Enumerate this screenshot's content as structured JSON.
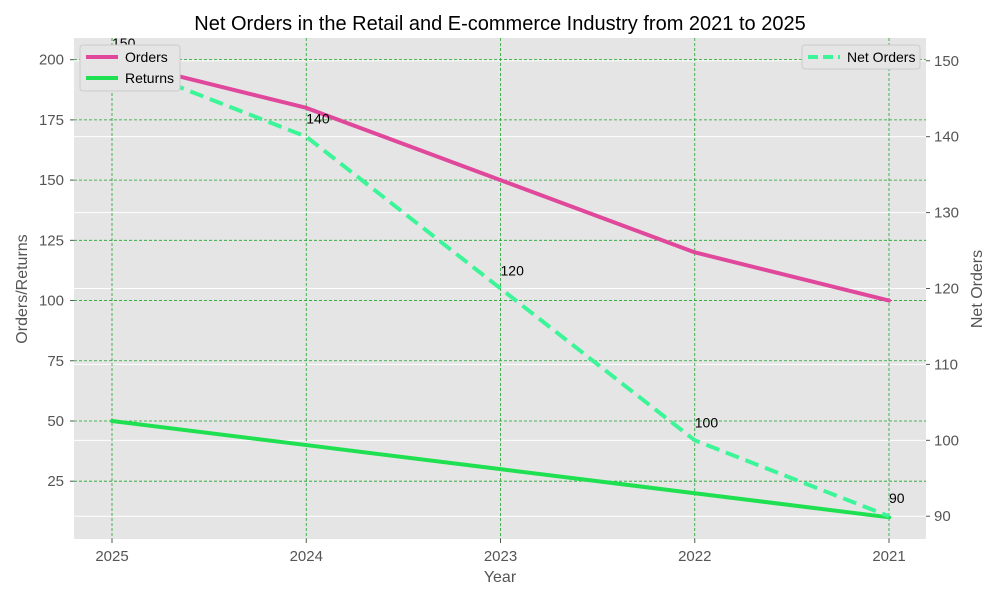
{
  "chart_data": {
    "type": "line",
    "title": "Net Orders in the Retail and E-commerce Industry from 2021 to 2025",
    "xlabel": "Year",
    "ylabel_left": "Orders/Returns",
    "ylabel_right": "Net Orders",
    "categories": [
      "2025",
      "2024",
      "2023",
      "2022",
      "2021"
    ],
    "ylim_left": [
      1,
      209
    ],
    "yticks_left": [
      25,
      50,
      75,
      100,
      125,
      150,
      175,
      200
    ],
    "ylim_right": [
      87,
      153
    ],
    "yticks_right": [
      90,
      100,
      110,
      120,
      130,
      140,
      150
    ],
    "grid": true,
    "series_left": [
      {
        "name": "Orders",
        "values": [
          200,
          180,
          150,
          120,
          100
        ],
        "color": "#e0489b"
      },
      {
        "name": "Returns",
        "values": [
          50,
          40,
          30,
          20,
          10
        ],
        "color": "#1fe050"
      }
    ],
    "series_right": [
      {
        "name": "Net Orders",
        "values": [
          150,
          140,
          120,
          100,
          90
        ],
        "color": "#3cf598",
        "dashed": true
      }
    ],
    "data_labels": [
      "150",
      "140",
      "120",
      "100",
      "90"
    ],
    "legend_left": {
      "position": "top-left",
      "entries": [
        "Orders",
        "Returns"
      ]
    },
    "legend_right": {
      "position": "top-right",
      "entries": [
        "Net Orders"
      ]
    }
  }
}
